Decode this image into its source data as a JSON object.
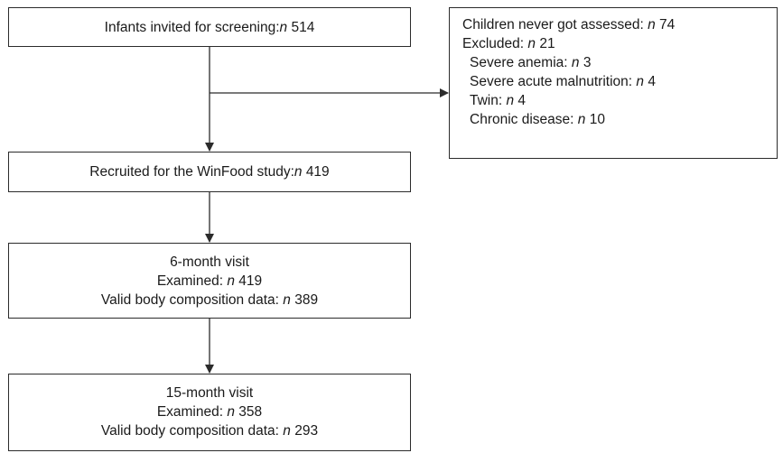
{
  "boxes": {
    "invited": {
      "text": "Infants invited for screening: ",
      "n": "n",
      "value": "514"
    },
    "recruited": {
      "text": "Recruited for the WinFood study: ",
      "n": "n",
      "value": "419"
    },
    "visit6": {
      "title": "6-month visit",
      "examined_label": "Examined: ",
      "examined_n": "n",
      "examined_value": "419",
      "valid_label": "Valid body composition data: ",
      "valid_n": "n",
      "valid_value": "389"
    },
    "visit15": {
      "title": "15-month visit",
      "examined_label": "Examined: ",
      "examined_n": "n",
      "examined_value": "358",
      "valid_label": "Valid body composition data: ",
      "valid_n": "n",
      "valid_value": "293"
    },
    "excluded": {
      "never_assessed_label": "Children never got assessed: ",
      "never_assessed_n": "n",
      "never_assessed_value": "74",
      "excluded_label": "Excluded: ",
      "excluded_n": "n",
      "excluded_value": "21",
      "reasons": [
        {
          "label": "Severe anemia: ",
          "n": "n",
          "value": "3"
        },
        {
          "label": "Severe acute malnutrition: ",
          "n": "n",
          "value": "4"
        },
        {
          "label": "Twin: ",
          "n": "n",
          "value": "4"
        },
        {
          "label": "Chronic disease: ",
          "n": "n",
          "value": "10"
        }
      ]
    }
  },
  "colors": {
    "line": "#2b2b2b",
    "text": "#1a1a1a"
  }
}
